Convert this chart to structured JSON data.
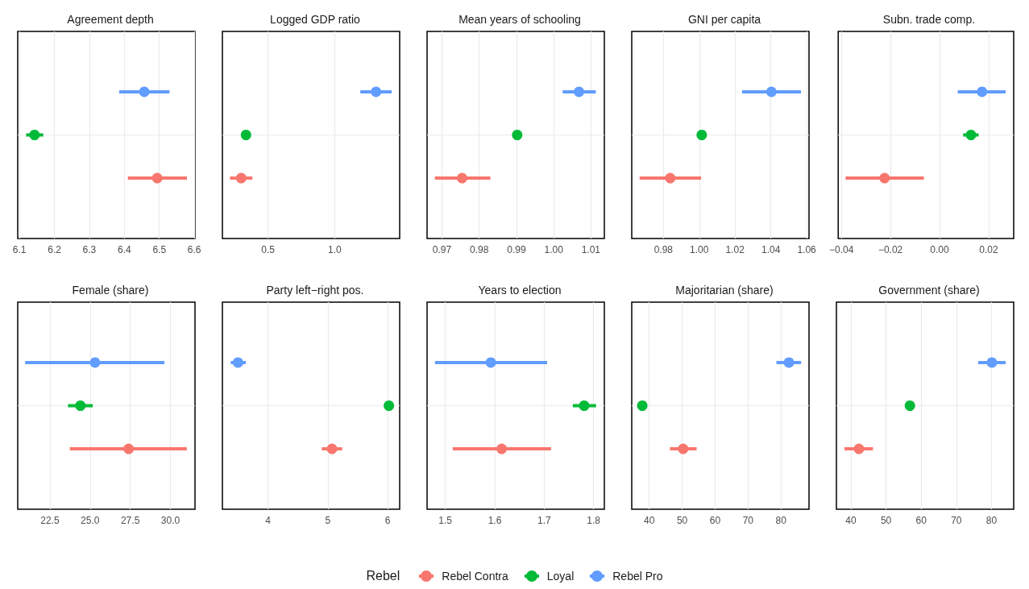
{
  "chart_data": [
    {
      "type": "scatter",
      "orientation": "horizontal",
      "title": "Agreement depth",
      "categories": [
        null
      ],
      "xlim": [
        6.095,
        6.602
      ],
      "xticks": [
        6.1,
        6.2,
        6.3,
        6.4,
        6.5,
        6.6
      ],
      "grid": true,
      "marker": "circle",
      "legend": "bottom",
      "legend_title": "Rebel",
      "series": [
        {
          "name": "Rebel Contra",
          "color": "#f8766d",
          "values": [
            6.494
          ],
          "errors": [
            [
              6.41,
              6.579
            ]
          ]
        },
        {
          "name": "Loyal",
          "color": "#00ba38",
          "values": [
            6.143
          ],
          "errors": [
            [
              6.119,
              6.168
            ]
          ]
        },
        {
          "name": "Rebel Pro",
          "color": "#619cff",
          "values": [
            6.457
          ],
          "errors": [
            [
              6.385,
              6.529
            ]
          ]
        }
      ]
    },
    {
      "type": "scatter",
      "orientation": "horizontal",
      "title": "Logged GDP ratio",
      "categories": [
        null
      ],
      "xlim": [
        0.158,
        1.487
      ],
      "xticks": [
        0.5,
        {
          "value": 1,
          "label": "1.0"
        }
      ],
      "grid": true,
      "marker": "circle",
      "series": [
        {
          "color": "#f8766d",
          "values": [
            0.299
          ],
          "errors": [
            [
              0.215,
              0.383
            ]
          ]
        },
        {
          "color": "#00ba38",
          "values": [
            0.335
          ],
          "errors": [
            null
          ]
        },
        {
          "color": "#619cff",
          "values": [
            1.31
          ],
          "errors": [
            [
              1.192,
              1.427
            ]
          ]
        }
      ]
    },
    {
      "type": "scatter",
      "orientation": "horizontal",
      "title": "Mean years of schooling",
      "categories": [
        null
      ],
      "xlim": [
        0.966,
        1.0136
      ],
      "xticks": [
        0.97,
        0.98,
        0.99,
        {
          "value": 1,
          "label": "1.00"
        },
        1.01
      ],
      "grid": true,
      "marker": "circle",
      "series": [
        {
          "color": "#f8766d",
          "values": [
            0.9754
          ],
          "errors": [
            [
              0.9681,
              0.983
            ]
          ]
        },
        {
          "color": "#00ba38",
          "values": [
            0.9902
          ],
          "errors": [
            null
          ]
        },
        {
          "color": "#619cff",
          "values": [
            1.0068
          ],
          "errors": [
            [
              1.0024,
              1.0113
            ]
          ]
        }
      ]
    },
    {
      "type": "scatter",
      "orientation": "horizontal",
      "title": "GNI per capita",
      "categories": [
        null
      ],
      "xlim": [
        0.9623,
        1.0613
      ],
      "xticks": [
        0.98,
        {
          "value": 1,
          "label": "1.00"
        },
        1.02,
        1.04,
        1.06
      ],
      "grid": true,
      "marker": "circle",
      "series": [
        {
          "color": "#f8766d",
          "values": [
            0.9838
          ],
          "errors": [
            [
              0.9667,
              1.001
            ]
          ]
        },
        {
          "color": "#00ba38",
          "values": [
            1.0014
          ],
          "errors": [
            null
          ]
        },
        {
          "color": "#619cff",
          "values": [
            1.0403
          ],
          "errors": [
            [
              1.0239,
              1.0568
            ]
          ]
        }
      ]
    },
    {
      "type": "scatter",
      "orientation": "horizontal",
      "title": "Subn. trade comp.",
      "categories": [
        null
      ],
      "xlim": [
        -0.0413,
        0.0302
      ],
      "xticks": [
        {
          "value": -0.04,
          "label": "−0.04"
        },
        {
          "value": -0.02,
          "label": "−0.02"
        },
        {
          "value": 0,
          "label": "0.00"
        },
        0.02
      ],
      "grid": true,
      "marker": "circle",
      "series": [
        {
          "color": "#f8766d",
          "values": [
            -0.0224
          ],
          "errors": [
            [
              -0.0383,
              -0.0064
            ]
          ]
        },
        {
          "color": "#00ba38",
          "values": [
            0.0128
          ],
          "errors": [
            [
              0.0096,
              0.0159
            ]
          ]
        },
        {
          "color": "#619cff",
          "values": [
            0.0173
          ],
          "errors": [
            [
              0.0074,
              0.0269
            ]
          ]
        }
      ]
    },
    {
      "type": "scatter",
      "orientation": "horizontal",
      "title": "Female (share)",
      "categories": [
        null
      ],
      "xlim": [
        20.5,
        31.53
      ],
      "xticks": [
        22.5,
        {
          "value": 25,
          "label": "25.0"
        },
        27.5,
        {
          "value": 30,
          "label": "30.0"
        }
      ],
      "grid": true,
      "marker": "circle",
      "series": [
        {
          "color": "#f8766d",
          "values": [
            27.4
          ],
          "errors": [
            [
              23.74,
              31.02
            ]
          ]
        },
        {
          "color": "#00ba38",
          "values": [
            24.4
          ],
          "errors": [
            [
              23.63,
              25.17
            ]
          ]
        },
        {
          "color": "#619cff",
          "values": [
            25.31
          ],
          "errors": [
            [
              20.96,
              29.63
            ]
          ]
        }
      ]
    },
    {
      "type": "scatter",
      "orientation": "horizontal",
      "title": "Party left−right pos.",
      "categories": [
        null
      ],
      "xlim": [
        3.24,
        6.2
      ],
      "xticks": [
        4,
        5,
        6
      ],
      "grid": true,
      "marker": "circle",
      "series": [
        {
          "color": "#f8766d",
          "values": [
            5.07
          ],
          "errors": [
            [
              4.9,
              5.24
            ]
          ]
        },
        {
          "color": "#00ba38",
          "values": [
            6.02
          ],
          "errors": [
            null
          ]
        },
        {
          "color": "#619cff",
          "values": [
            3.5
          ],
          "errors": [
            [
              3.38,
              3.63
            ]
          ]
        }
      ]
    },
    {
      "type": "scatter",
      "orientation": "horizontal",
      "title": "Years to election",
      "categories": [
        null
      ],
      "xlim": [
        1.463,
        1.8218
      ],
      "xticks": [
        1.5,
        1.6,
        1.7,
        1.8
      ],
      "grid": true,
      "marker": "circle",
      "series": [
        {
          "color": "#f8766d",
          "values": [
            1.614
          ],
          "errors": [
            [
              1.515,
              1.714
            ]
          ]
        },
        {
          "color": "#00ba38",
          "values": [
            1.781
          ],
          "errors": [
            [
              1.758,
              1.805
            ]
          ]
        },
        {
          "color": "#619cff",
          "values": [
            1.592
          ],
          "errors": [
            [
              1.479,
              1.706
            ]
          ]
        }
      ]
    },
    {
      "type": "scatter",
      "orientation": "horizontal",
      "title": "Majoritarian (share)",
      "categories": [
        null
      ],
      "xlim": [
        34.7,
        88.5
      ],
      "xticks": [
        40,
        50,
        60,
        70,
        80
      ],
      "grid": true,
      "marker": "circle",
      "series": [
        {
          "color": "#f8766d",
          "values": [
            50.3
          ],
          "errors": [
            [
              46.3,
              54.4
            ]
          ]
        },
        {
          "color": "#00ba38",
          "values": [
            37.9
          ],
          "errors": [
            null
          ]
        },
        {
          "color": "#619cff",
          "values": [
            82.4
          ],
          "errors": [
            [
              78.6,
              86.1
            ]
          ]
        }
      ]
    },
    {
      "type": "scatter",
      "orientation": "horizontal",
      "title": "Government (share)",
      "categories": [
        null
      ],
      "xlim": [
        35.9,
        86.3
      ],
      "xticks": [
        40,
        50,
        60,
        70,
        80
      ],
      "grid": true,
      "marker": "circle",
      "series": [
        {
          "color": "#f8766d",
          "values": [
            42.3
          ],
          "errors": [
            [
              38.2,
              46.3
            ]
          ]
        },
        {
          "color": "#00ba38",
          "values": [
            56.8
          ],
          "errors": [
            null
          ]
        },
        {
          "color": "#619cff",
          "values": [
            80.1
          ],
          "errors": [
            [
              76.2,
              84
            ]
          ]
        }
      ]
    }
  ]
}
